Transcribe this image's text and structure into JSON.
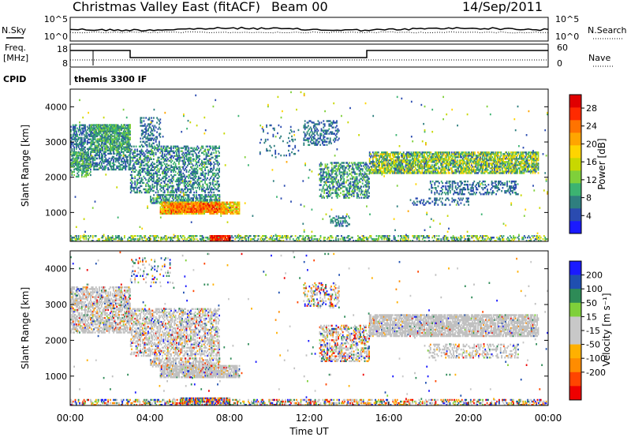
{
  "header": {
    "title": "Christmas Valley East (fitACF)",
    "beam": "Beam 00",
    "date": "14/Sep/2011"
  },
  "top_panels": {
    "noise": {
      "left_label": "N.Sky",
      "right_label": "N.Search",
      "ticks": [
        "10^5",
        "10^0"
      ]
    },
    "freq": {
      "left_label_1": "Freq.",
      "left_label_2": "[MHz]",
      "left_ticks": [
        "18",
        "8"
      ],
      "right_ticks": [
        "60",
        "0"
      ],
      "right_label": "Nave"
    },
    "cpid": {
      "label": "CPID",
      "text": "themis 3300 IF"
    }
  },
  "colors": {
    "power": [
      "#1a1aff",
      "#2a4bb0",
      "#2f7f7f",
      "#3cb371",
      "#7fd03a",
      "#c8d800",
      "#ffd400",
      "#ffa500",
      "#ff7300",
      "#ff2a00",
      "#e00000"
    ],
    "velocity": [
      "#1a1aff",
      "#1f4fb0",
      "#2e8b57",
      "#7fd03a",
      "#c8c8c8",
      "#c8c8c8",
      "#ffb000",
      "#ff8c00",
      "#ff4500",
      "#ee0000"
    ],
    "ground": "#c0c0c0"
  },
  "chart_data": [
    {
      "type": "heatmap",
      "name": "power-panel",
      "xlabel": "",
      "ylabel": "Slant Range [km]",
      "xlim": [
        0,
        24
      ],
      "ylim": [
        180,
        4500
      ],
      "yticks": [
        1000,
        2000,
        3000,
        4000
      ],
      "ytick_labels": [
        "1000",
        "2000",
        "3000",
        "4000"
      ],
      "colorbar": {
        "label": "Power [dB]",
        "ticks": [
          4,
          8,
          12,
          16,
          20,
          24,
          28
        ],
        "tick_labels": [
          "4",
          "8",
          "12",
          "16",
          "20",
          "24",
          "28"
        ],
        "range": [
          0,
          31
        ]
      },
      "regions": [
        {
          "t": [
            0.0,
            3.0
          ],
          "r": [
            2200,
            3500
          ],
          "v": [
            3,
            10
          ],
          "d": 0.55
        },
        {
          "t": [
            0.0,
            1.0
          ],
          "r": [
            2000,
            2700
          ],
          "v": [
            6,
            14
          ],
          "d": 0.5
        },
        {
          "t": [
            1.0,
            3.0
          ],
          "r": [
            2700,
            3500
          ],
          "v": [
            6,
            14
          ],
          "d": 0.5
        },
        {
          "t": [
            3.5,
            4.5
          ],
          "r": [
            2900,
            3700
          ],
          "v": [
            3,
            9
          ],
          "d": 0.35
        },
        {
          "t": [
            3.0,
            7.5
          ],
          "r": [
            1550,
            2900
          ],
          "v": [
            3,
            12
          ],
          "d": 0.45
        },
        {
          "t": [
            4.0,
            7.5
          ],
          "r": [
            1250,
            1500
          ],
          "v": [
            4,
            12
          ],
          "d": 0.65
        },
        {
          "t": [
            4.5,
            8.5
          ],
          "r": [
            950,
            1300
          ],
          "v": [
            12,
            26
          ],
          "d": 0.85
        },
        {
          "t": [
            5.0,
            7.5
          ],
          "r": [
            1000,
            1250
          ],
          "v": [
            20,
            29
          ],
          "d": 0.8
        },
        {
          "t": [
            0.0,
            24.0
          ],
          "r": [
            180,
            320
          ],
          "v": [
            4,
            18
          ],
          "d": 0.45
        },
        {
          "t": [
            7.0,
            8.0
          ],
          "r": [
            180,
            350
          ],
          "v": [
            24,
            31
          ],
          "d": 0.9
        },
        {
          "t": [
            9.5,
            11.5
          ],
          "r": [
            2600,
            3500
          ],
          "v": [
            3,
            8
          ],
          "d": 0.08
        },
        {
          "t": [
            11.7,
            13.5
          ],
          "r": [
            2900,
            3600
          ],
          "v": [
            3,
            9
          ],
          "d": 0.35
        },
        {
          "t": [
            12.5,
            15.0
          ],
          "r": [
            1400,
            2400
          ],
          "v": [
            3,
            14
          ],
          "d": 0.45
        },
        {
          "t": [
            13.0,
            14.0
          ],
          "r": [
            600,
            900
          ],
          "v": [
            4,
            10
          ],
          "d": 0.4
        },
        {
          "t": [
            15.0,
            23.5
          ],
          "r": [
            2100,
            2700
          ],
          "v": [
            4,
            20
          ],
          "d": 0.75
        },
        {
          "t": [
            18.0,
            22.5
          ],
          "r": [
            1500,
            1900
          ],
          "v": [
            3,
            9
          ],
          "d": 0.35
        },
        {
          "t": [
            17.0,
            20.0
          ],
          "r": [
            1200,
            1400
          ],
          "v": [
            3,
            8
          ],
          "d": 0.25
        },
        {
          "t": [
            0.0,
            24.0
          ],
          "r": [
            300,
            4500
          ],
          "v": [
            3,
            20
          ],
          "d": 0.006
        }
      ]
    },
    {
      "type": "heatmap",
      "name": "velocity-panel",
      "xlabel": "Time UT",
      "ylabel": "Slant Range [km]",
      "xlim": [
        0,
        24
      ],
      "ylim": [
        180,
        4500
      ],
      "xticks": [
        0,
        4,
        8,
        12,
        16,
        20,
        24
      ],
      "xtick_labels": [
        "00:00",
        "04:00",
        "08:00",
        "12:00",
        "16:00",
        "20:00",
        "00:00"
      ],
      "yticks": [
        1000,
        2000,
        3000,
        4000
      ],
      "ytick_labels": [
        "1000",
        "2000",
        "3000",
        "4000"
      ],
      "colorbar": {
        "label": "Velocity [m s⁻¹]",
        "ticks": [
          200,
          100,
          50,
          15,
          -15,
          -50,
          -100,
          -200
        ],
        "tick_labels": [
          "200",
          "100",
          "50",
          "15",
          "-15",
          "-50",
          "-100",
          "-200"
        ]
      },
      "regions": [
        {
          "t": [
            0.0,
            3.0
          ],
          "r": [
            2200,
            3500
          ],
          "g": 0.75,
          "d": 0.6
        },
        {
          "t": [
            3.0,
            7.5
          ],
          "r": [
            1550,
            2900
          ],
          "g": 0.7,
          "d": 0.5
        },
        {
          "t": [
            4.0,
            7.5
          ],
          "r": [
            1250,
            1500
          ],
          "g": 0.7,
          "d": 0.6
        },
        {
          "t": [
            4.5,
            8.5
          ],
          "r": [
            950,
            1300
          ],
          "g": 0.85,
          "d": 0.85
        },
        {
          "t": [
            5.5,
            8.0
          ],
          "r": [
            180,
            400
          ],
          "g": 0.05,
          "d": 0.85
        },
        {
          "t": [
            0.0,
            24.0
          ],
          "r": [
            180,
            320
          ],
          "g": 0.1,
          "d": 0.45
        },
        {
          "t": [
            11.7,
            13.5
          ],
          "r": [
            2900,
            3600
          ],
          "g": 0.3,
          "d": 0.35
        },
        {
          "t": [
            12.5,
            15.0
          ],
          "r": [
            1400,
            2400
          ],
          "g": 0.4,
          "d": 0.45
        },
        {
          "t": [
            15.0,
            23.5
          ],
          "r": [
            2100,
            2700
          ],
          "g": 0.92,
          "d": 0.78
        },
        {
          "t": [
            18.0,
            22.5
          ],
          "r": [
            1500,
            1900
          ],
          "g": 0.85,
          "d": 0.35
        },
        {
          "t": [
            3.0,
            5.0
          ],
          "r": [
            3600,
            4300
          ],
          "g": 0.2,
          "d": 0.15
        },
        {
          "t": [
            0.0,
            24.0
          ],
          "r": [
            300,
            4500
          ],
          "g": 0.2,
          "d": 0.006
        }
      ]
    }
  ]
}
